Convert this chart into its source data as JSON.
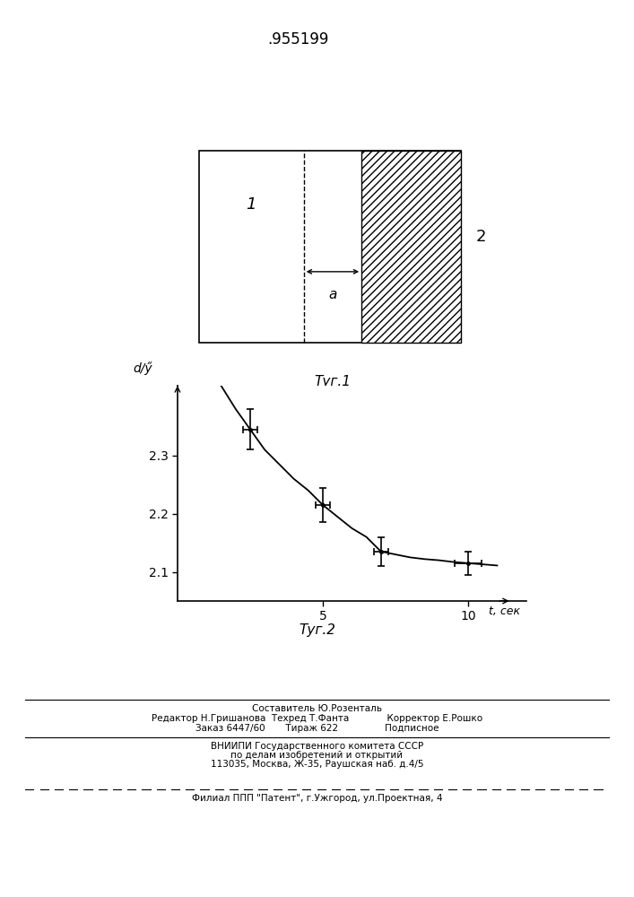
{
  "patent_number": ".955199",
  "fig1_caption": "Τуг.1",
  "fig2_caption": "Τуг.2",
  "fig1_label1": "1",
  "fig1_label2": "2",
  "fig1_label_a": "a",
  "graph_ylabel": "d/ӳ",
  "graph_xlabel": "t, сек",
  "graph_yticks": [
    2.1,
    2.2,
    2.3
  ],
  "graph_xticks": [
    5,
    10
  ],
  "graph_xlim": [
    0,
    12
  ],
  "graph_ylim": [
    2.05,
    2.42
  ],
  "data_x": [
    2.5,
    5.0,
    7.0,
    10.0
  ],
  "data_y": [
    2.345,
    2.215,
    2.135,
    2.115
  ],
  "data_yerr": [
    0.035,
    0.03,
    0.025,
    0.02
  ],
  "data_xerr": [
    0.25,
    0.25,
    0.25,
    0.45
  ],
  "curve_x": [
    1.5,
    2.0,
    2.5,
    3.0,
    3.5,
    4.0,
    4.5,
    5.0,
    5.5,
    6.0,
    6.5,
    7.0,
    7.5,
    8.0,
    8.5,
    9.0,
    9.5,
    10.0,
    10.5,
    11.0
  ],
  "curve_y": [
    2.42,
    2.38,
    2.345,
    2.31,
    2.285,
    2.26,
    2.24,
    2.215,
    2.195,
    2.175,
    2.16,
    2.135,
    2.13,
    2.125,
    2.122,
    2.12,
    2.117,
    2.115,
    2.113,
    2.111
  ],
  "footer_line1": "Составитель Ю.Розенталь",
  "footer_line2": "Редактор Н.Гришанова  Техред Т.Фанта             Корректор Е.Рошко",
  "footer_line3": "Заказ 6447/60       Тираж 622                Подписное",
  "footer_line4": "ВНИИПИ Государственного комитета СССР",
  "footer_line5": "по делам изобретений и открытий",
  "footer_line6": "113035, Москва, Ж-35, Раушская наб. д.4/5",
  "footer_line7": "Филиал ППП \"Патент\", г.Ужгород, ул.Проектная, 4"
}
